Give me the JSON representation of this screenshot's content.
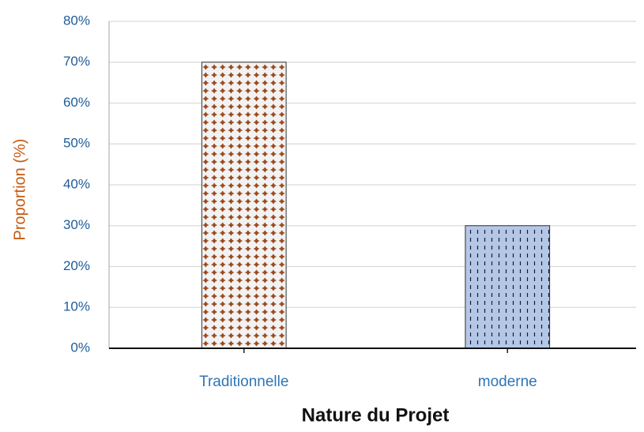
{
  "chart_data": {
    "type": "bar",
    "categories": [
      "Traditionnelle",
      "moderne"
    ],
    "values": [
      70,
      30
    ],
    "colors": [
      "#9b4a1e",
      "#b4c7e7"
    ],
    "ylim": [
      0,
      80
    ],
    "yticks": [
      {
        "value": 0,
        "label": "0%"
      },
      {
        "value": 10,
        "label": "10%"
      },
      {
        "value": 20,
        "label": "20%"
      },
      {
        "value": 30,
        "label": "30%"
      },
      {
        "value": 40,
        "label": "40%"
      },
      {
        "value": 50,
        "label": "50%"
      },
      {
        "value": 60,
        "label": "60%"
      },
      {
        "value": 70,
        "label": "70%"
      },
      {
        "value": 80,
        "label": "80%"
      }
    ],
    "y_label": "Proportion (%)",
    "x_label": "Nature du Projet",
    "grid": true
  }
}
